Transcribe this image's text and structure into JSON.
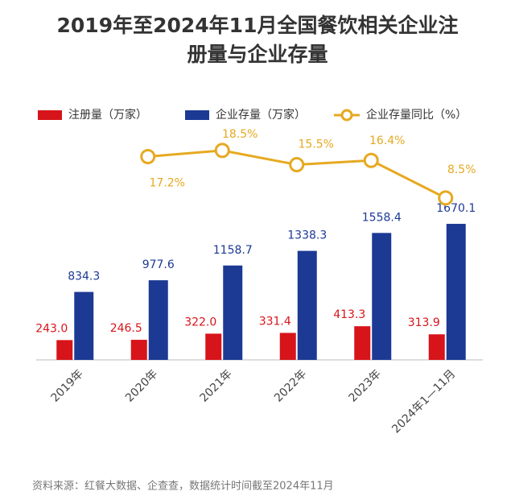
{
  "chart_data": {
    "type": "bar",
    "title": "2019年至2024年11月全国餐饮相关企业注册量与企业存量",
    "categories": [
      "2019年",
      "2020年",
      "2021年",
      "2022年",
      "2023年",
      "2024年1—11月"
    ],
    "series": [
      {
        "name": "注册量（万家）",
        "color": "#d7141a",
        "values": [
          243.0,
          246.5,
          322.0,
          331.4,
          413.3,
          313.9
        ],
        "value_labels": [
          "243.0",
          "246.5",
          "322.0",
          "331.4",
          "413.3",
          "313.9"
        ]
      },
      {
        "name": "企业存量（万家）",
        "color": "#1c3a94",
        "values": [
          834.3,
          977.6,
          1158.7,
          1338.3,
          1558.4,
          1670.1
        ]
      },
      {
        "name": "企业存量同比（%）",
        "color": "#e6a920",
        "type": "line",
        "axis": "y2",
        "values": [
          null,
          17.2,
          18.5,
          15.5,
          16.4,
          8.5
        ],
        "value_labels": [
          null,
          "17.2%",
          "18.5%",
          "15.5%",
          "16.4%",
          "8.5%"
        ]
      }
    ],
    "ylim": [
      0,
      1700
    ],
    "y2lim": [
      0,
      20
    ],
    "source": "资料来源：红餐大数据、企查查，数据统计时间截至2024年11月"
  }
}
